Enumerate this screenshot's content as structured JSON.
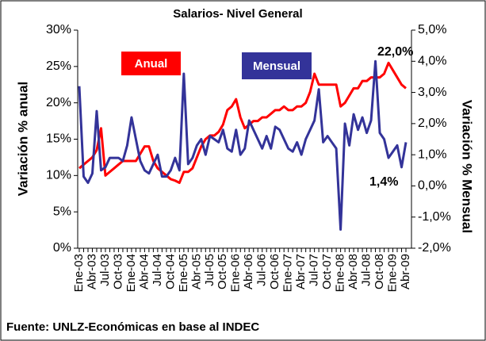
{
  "chart_data": {
    "type": "line",
    "title": "Salarios- Nivel General",
    "y_label": "Variación % anual",
    "y2_label": "Variación % Mensual",
    "source": "Fuente: UNLZ-Económicas en base al INDEC",
    "annotations": [
      "22,0%",
      "1,4%"
    ],
    "categories": [
      "Ene-03",
      null,
      null,
      "Abr-03",
      null,
      null,
      "Jul-03",
      null,
      null,
      "Oct-03",
      null,
      null,
      "Ene-04",
      null,
      null,
      "Abr-04",
      null,
      null,
      "Jul-04",
      null,
      null,
      "Oct-04",
      null,
      null,
      "Ene-05",
      null,
      null,
      "Abr-05",
      null,
      null,
      "Jul-05",
      null,
      null,
      "Oct-05",
      null,
      null,
      "Ene-06",
      null,
      null,
      "Abr-06",
      null,
      null,
      "Jul-06",
      null,
      null,
      "Oct-06",
      null,
      null,
      "Ene-07",
      null,
      null,
      "Abr-07",
      null,
      null,
      "Jul-07",
      null,
      null,
      "Oct-07",
      null,
      null,
      "Ene-08",
      null,
      null,
      "Abr-08",
      null,
      null,
      "Jul-08",
      null,
      null,
      "Oct-08",
      null,
      null,
      "Ene-09",
      null,
      null,
      "Abr-09"
    ],
    "series": [
      {
        "name": "Anual",
        "color": "#ff0000",
        "axis": "y",
        "values": [
          11.0,
          11.5,
          12.0,
          12.5,
          13.5,
          16.5,
          10.0,
          10.5,
          11.0,
          11.5,
          12.0,
          12.0,
          12.0,
          12.0,
          13.0,
          14.0,
          14.0,
          12.0,
          11.0,
          10.5,
          10.0,
          9.5,
          9.3,
          9.0,
          10.5,
          10.5,
          11.0,
          12.5,
          14.0,
          15.0,
          15.5,
          15.5,
          16.0,
          17.0,
          19.0,
          19.5,
          20.5,
          18.0,
          16.5,
          17.0,
          17.5,
          17.5,
          18.0,
          18.0,
          18.5,
          19.0,
          19.0,
          19.5,
          19.0,
          19.0,
          19.5,
          19.5,
          20.0,
          21.5,
          24.0,
          22.5,
          22.5,
          22.5,
          22.5,
          22.5,
          19.5,
          20.0,
          21.0,
          22.0,
          22.0,
          23.0,
          23.0,
          23.5,
          23.5,
          23.5,
          24.0,
          25.5,
          24.5,
          23.5,
          22.5,
          22.0
        ]
      },
      {
        "name": "Mensual",
        "color": "#333399",
        "axis": "y2",
        "values": [
          3.2,
          0.3,
          0.1,
          0.4,
          2.4,
          0.5,
          0.6,
          0.9,
          0.9,
          0.9,
          0.8,
          1.3,
          2.2,
          1.5,
          0.8,
          0.5,
          0.4,
          0.7,
          1.0,
          0.3,
          0.3,
          0.5,
          0.9,
          0.5,
          3.6,
          0.7,
          0.9,
          1.3,
          1.5,
          1.0,
          1.6,
          1.5,
          1.4,
          1.8,
          1.2,
          1.1,
          1.8,
          1.0,
          1.2,
          2.1,
          1.8,
          1.5,
          1.2,
          1.6,
          1.2,
          1.9,
          1.8,
          1.5,
          1.2,
          1.1,
          1.4,
          1.0,
          1.5,
          1.8,
          2.1,
          3.1,
          1.4,
          1.6,
          1.4,
          1.2,
          -1.4,
          2.0,
          1.3,
          2.3,
          1.8,
          2.2,
          1.7,
          2.1,
          4.0,
          1.7,
          1.5,
          0.9,
          1.1,
          1.3,
          0.6,
          1.4
        ]
      }
    ],
    "ylim": [
      0,
      30
    ],
    "yticks": [
      {
        "value": 0,
        "label": "0%"
      },
      {
        "value": 5,
        "label": "5%"
      },
      {
        "value": 10,
        "label": "10%"
      },
      {
        "value": 15,
        "label": "15%"
      },
      {
        "value": 20,
        "label": "20%"
      },
      {
        "value": 25,
        "label": "25%"
      },
      {
        "value": 30,
        "label": "30%"
      }
    ],
    "y2lim": [
      -2,
      5
    ],
    "y2ticks": [
      {
        "value": -2,
        "label": "-2,0%"
      },
      {
        "value": -1,
        "label": "-1,0%"
      },
      {
        "value": 0,
        "label": "0,0%"
      },
      {
        "value": 1,
        "label": "1,0%"
      },
      {
        "value": 2,
        "label": "2,0%"
      },
      {
        "value": 3,
        "label": "3,0%"
      },
      {
        "value": 4,
        "label": "4,0%"
      },
      {
        "value": 5,
        "label": "5,0%"
      }
    ],
    "grid": false
  }
}
